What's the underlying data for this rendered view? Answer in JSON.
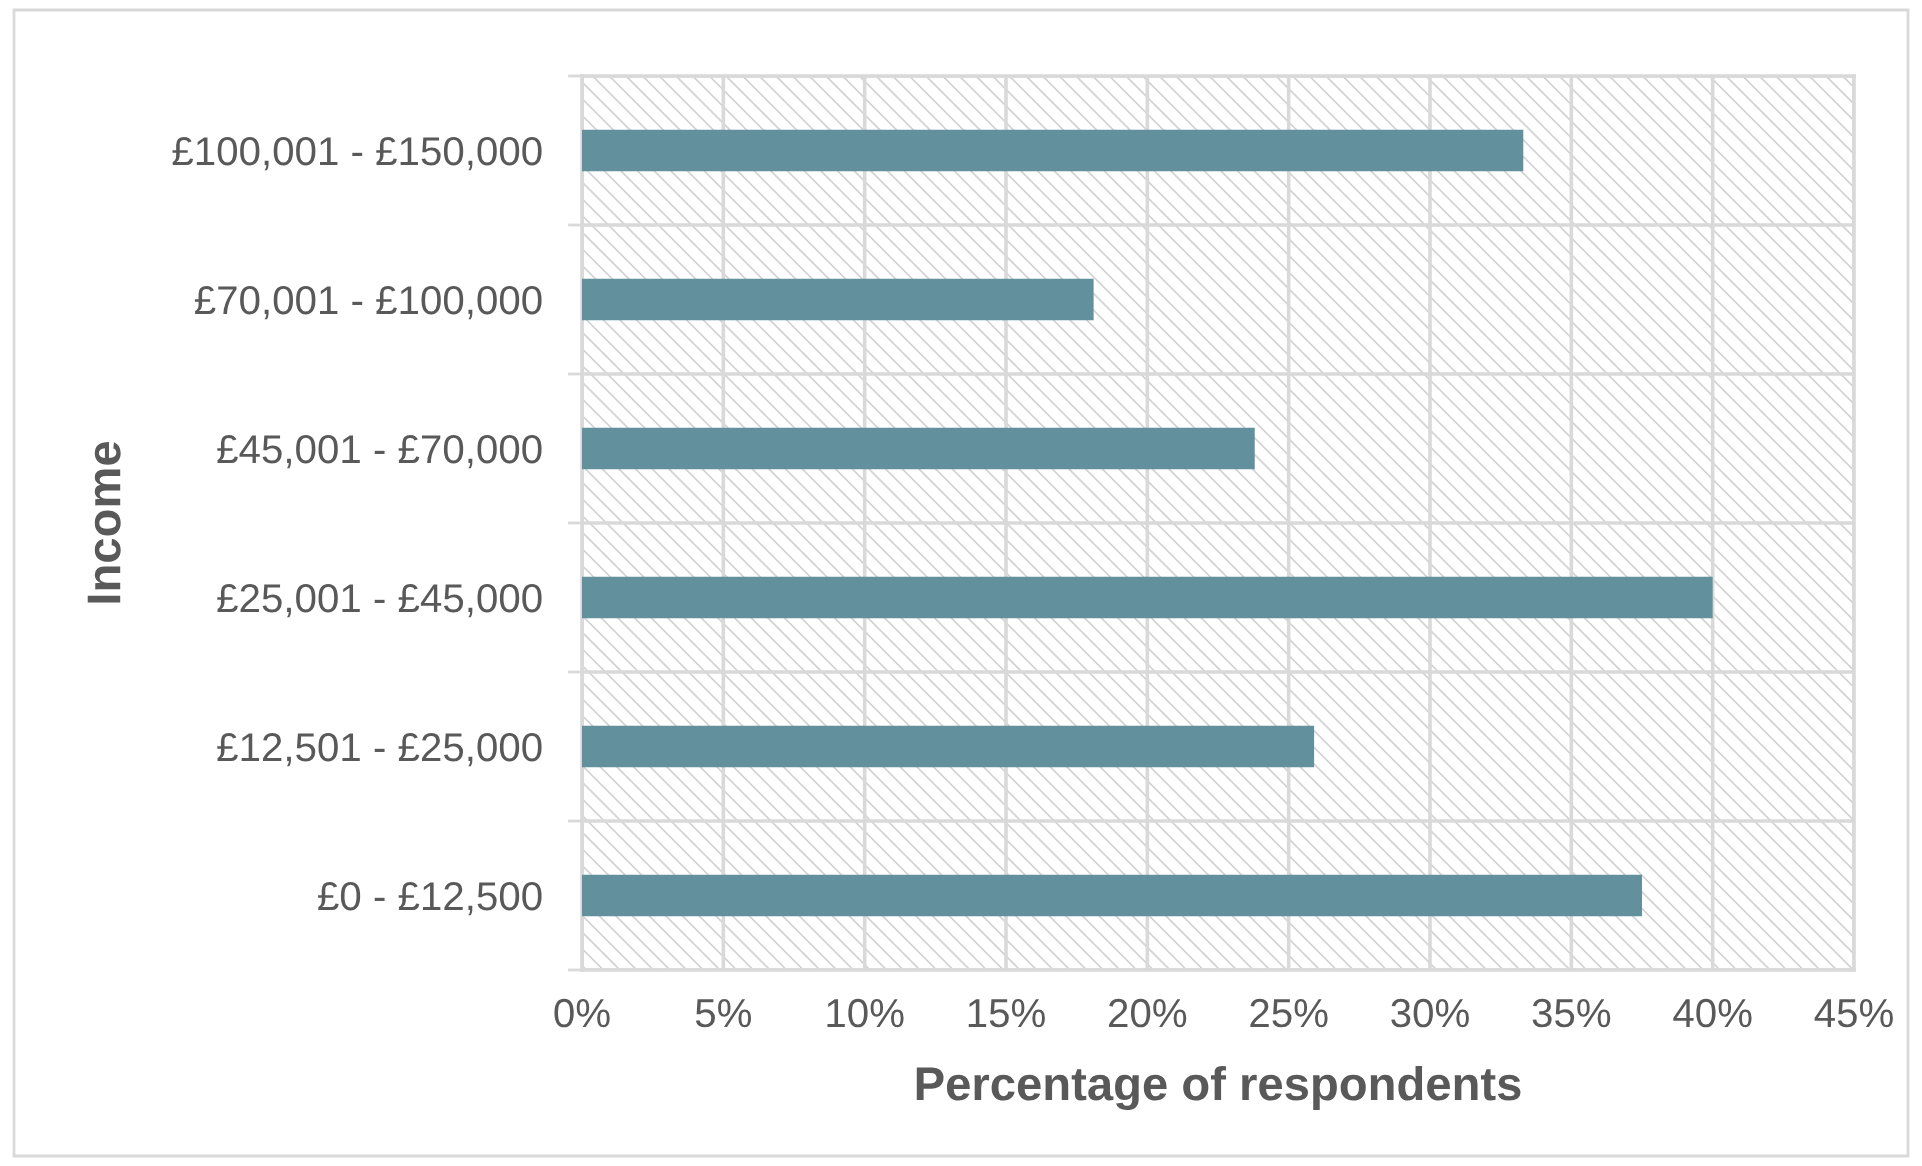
{
  "chart_data": {
    "type": "bar",
    "orientation": "horizontal",
    "xlabel": "Percentage of respondents",
    "ylabel": "Income",
    "categories": [
      "£100,001 - £150,000",
      "£70,001 - £100,000",
      "£45,001 - £70,000",
      "£25,001 - £45,000",
      "£12,501 - £25,000",
      "£0 - £12,500"
    ],
    "values": [
      33.3,
      18.1,
      23.8,
      40.0,
      25.9,
      37.5
    ],
    "color": "#62909c",
    "xlim": [
      0,
      45
    ],
    "xticks": [
      {
        "value": 0,
        "label": "0%"
      },
      {
        "value": 5,
        "label": "5%"
      },
      {
        "value": 10,
        "label": "10%"
      },
      {
        "value": 15,
        "label": "15%"
      },
      {
        "value": 20,
        "label": "20%"
      },
      {
        "value": 25,
        "label": "25%"
      },
      {
        "value": 30,
        "label": "30%"
      },
      {
        "value": 35,
        "label": "35%"
      },
      {
        "value": 40,
        "label": "40%"
      },
      {
        "value": 45,
        "label": "45%"
      }
    ],
    "grid": true
  }
}
